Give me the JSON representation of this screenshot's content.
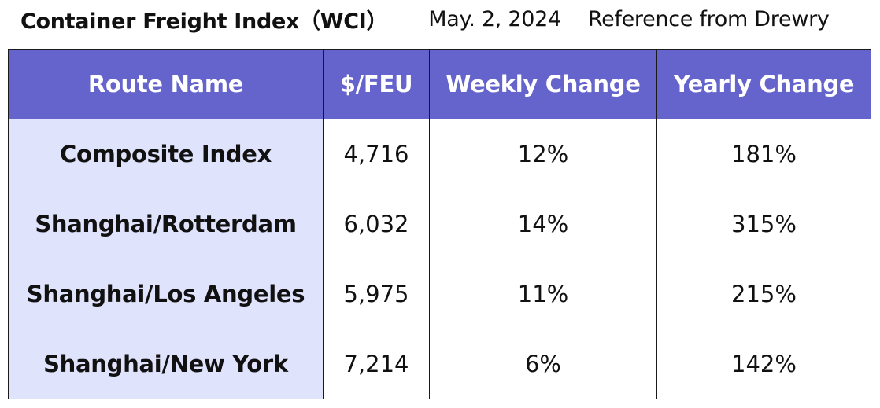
{
  "header": {
    "title": "Container Freight Index（WCI）",
    "date": "May. 2, 2024",
    "source": "Reference from Drewry"
  },
  "chart_data": {
    "type": "table",
    "columns": [
      "Route Name",
      "$/FEU",
      "Weekly Change",
      "Yearly Change"
    ],
    "rows": [
      [
        "Composite Index",
        "4,716",
        "12%",
        "181%"
      ],
      [
        "Shanghai/Rotterdam",
        "6,032",
        "14%",
        "315%"
      ],
      [
        "Shanghai/Los Angeles",
        "5,975",
        "11%",
        "215%"
      ],
      [
        "Shanghai/New York",
        "7,214",
        "6%",
        "142%"
      ]
    ]
  },
  "colors": {
    "header_bg": "#6464cc",
    "route_bg": "#dfe3fb",
    "border": "#1a1a1a"
  }
}
